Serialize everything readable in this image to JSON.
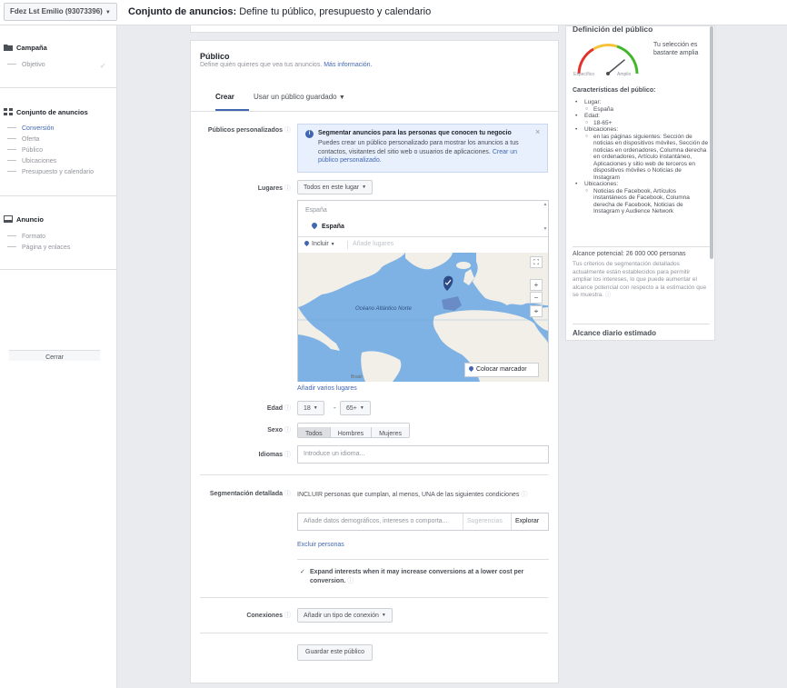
{
  "account": {
    "label": "Fdez Lst Emilio (93073396)"
  },
  "header": {
    "title_bold": "Conjunto de anuncios:",
    "title_rest": " Define tu público, presupuesto y calendario"
  },
  "sidebar": {
    "campaign": {
      "label": "Campaña",
      "items": [
        "Objetivo"
      ]
    },
    "adset": {
      "label": "Conjunto de anuncios",
      "items": [
        "Conversión",
        "Oferta",
        "Público",
        "Ubicaciones",
        "Presupuesto y calendario"
      ]
    },
    "ad": {
      "label": "Anuncio",
      "items": [
        "Formato",
        "Página y enlaces"
      ]
    },
    "close_label": "Cerrar"
  },
  "audience": {
    "title": "Público",
    "desc": "Define quién quieres que vea tus anuncios.",
    "more_info": "Más información.",
    "tabs": [
      "Crear",
      "Usar un público guardado"
    ],
    "custom_label": "Públicos personalizados",
    "info": {
      "title": "Segmentar anuncios para las personas que conocen tu negocio",
      "text": "Puedes crear un público personalizado para mostrar los anuncios a tus contactos, visitantes del sitio web o usuarios de aplicaciones.",
      "link": "Crear un público personalizado."
    },
    "places_label": "Lugares",
    "places_dropdown": "Todos en este lugar",
    "location_header": "España",
    "location_item": "España",
    "include": "Incluir",
    "add_places_placeholder": "Añade lugares",
    "map": {
      "ocean_label": "Océano Atlántico Norte",
      "brazil_label": "Brasil",
      "place_marker": "Colocar marcador"
    },
    "add_many_places": "Añadir varios lugares",
    "age_label": "Edad",
    "age_min": "18",
    "age_max": "65+",
    "gender_label": "Sexo",
    "genders": [
      "Todos",
      "Hombres",
      "Mujeres"
    ],
    "languages_label": "Idiomas",
    "languages_placeholder": "Introduce un idioma...",
    "detailed_label": "Segmentación detallada",
    "detailed_desc": "INCLUIR personas que cumplan, al menos, UNA de las siguientes condiciones",
    "detailed_placeholder": "Añade datos demográficos, intereses o comporta...",
    "suggestions": "Sugerencias",
    "explore": "Explorar",
    "exclude": "Excluir personas",
    "expand_text": "Expand interests when it may increase conversions at a lower cost per conversion.",
    "connections_label": "Conexiones",
    "connections_dropdown": "Añadir un tipo de conexión",
    "save_button": "Guardar este público"
  },
  "definition": {
    "title": "Definición del público",
    "gauge_specific": "Específico",
    "gauge_broad": "Amplio",
    "gauge_text": "Tu selección es bastante amplia",
    "gauge_level": 0.78,
    "characteristics": "Características del público:",
    "location_label": "Lugar:",
    "location_value": "España",
    "age_label": "Edad:",
    "age_value": "18-65+",
    "placements1_label": "Ubicaciones:",
    "placements1_value": "en las páginas siguientes: Sección de noticias en dispositivos móviles, Sección de noticias en ordenadores, Columna derecha en ordenadores, Artículo instantáneo, Aplicaciones y sitio web de terceros en dispositivos móviles o Noticias de Instagram",
    "placements2_label": "Ubicaciones:",
    "placements2_value": "Noticias de Facebook, Artículos instantáneos de Facebook, Columna derecha de Facebook, Noticias de Instagram y Audience Network",
    "reach": "Alcance potencial: 26 000 000 personas",
    "reach_desc": "Tus criterios de segmentación detallados actualmente están establecidos para permitir ampliar los intereses, lo que puede aumentar el alcance potencial con respecto a la estimación que se muestra.",
    "daily": "Alcance diario estimado"
  },
  "colors": {
    "accent": "#4267b2",
    "gauge_red": "#e4322b",
    "gauge_yellow": "#f5c33b",
    "gauge_green": "#42b72a"
  }
}
